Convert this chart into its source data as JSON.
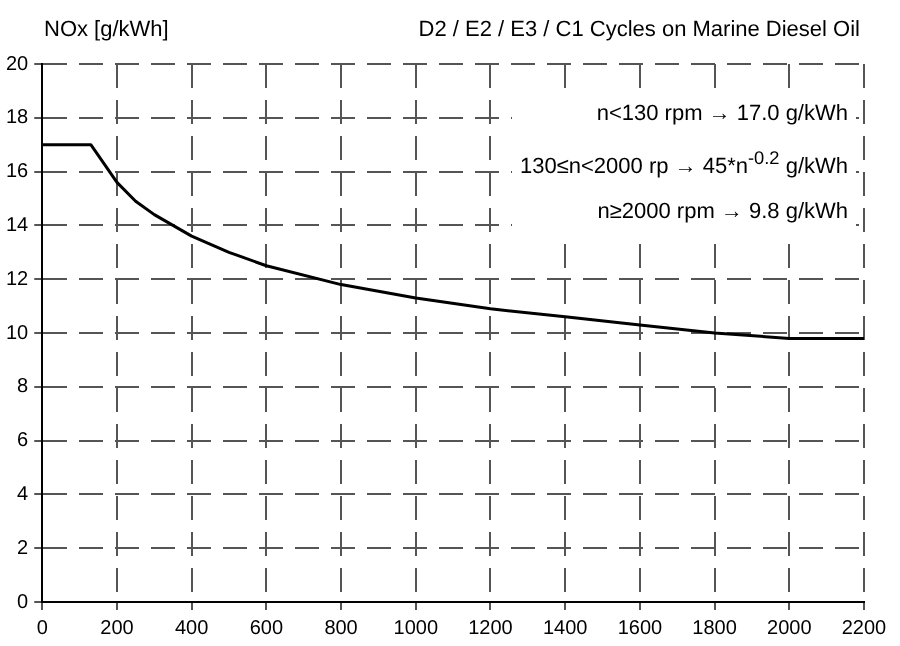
{
  "chart_data": {
    "type": "line",
    "title": "D2 / E2 / E3 / C1 Cycles on Marine Diesel Oil",
    "ylabel": "NOx [g/kWh]",
    "x": [
      0,
      130,
      150,
      200,
      250,
      300,
      400,
      500,
      600,
      800,
      1000,
      1200,
      1400,
      1600,
      1800,
      2000,
      2200
    ],
    "series": [
      {
        "color": "#000000",
        "values": [
          17,
          17,
          16.6,
          15.6,
          14.9,
          14.4,
          13.6,
          13.0,
          12.5,
          11.8,
          11.3,
          10.9,
          10.6,
          10.3,
          10.0,
          9.8,
          9.8
        ]
      }
    ],
    "xlim": [
      0,
      2200
    ],
    "xticks": [
      0,
      200,
      400,
      600,
      800,
      1000,
      1200,
      1400,
      1600,
      1800,
      2000,
      2200
    ],
    "ylim": [
      0,
      20
    ],
    "yticks": [
      0,
      2,
      4,
      6,
      8,
      10,
      12,
      14,
      16,
      18,
      20
    ],
    "grid": true,
    "marker": "none",
    "line_style": "solid",
    "annotations": [
      "n<130  rpm → 17.0  g/kWh",
      "130≤n<2000 rp → 45*n$^{-0.2}$ g/kWh",
      "n≥2000 rpm → 9.8  g/kWh"
    ]
  }
}
